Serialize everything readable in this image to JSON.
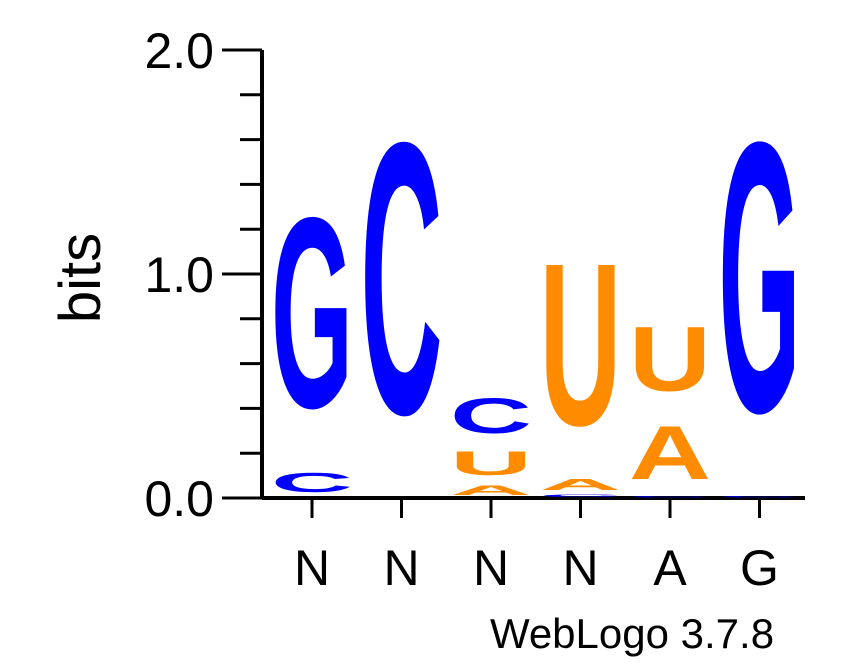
{
  "chart_data": {
    "type": "sequence-logo",
    "ylabel": "bits",
    "ylim": [
      0,
      2
    ],
    "yticks": [
      {
        "value": 0,
        "label": "0.0"
      },
      {
        "value": 1,
        "label": "1.0"
      },
      {
        "value": 2,
        "label": "2.0"
      }
    ],
    "minor_tick_step": 0.2,
    "positions": [
      {
        "label": "N",
        "stack": [
          {
            "letter": "C",
            "height": 0.14
          },
          {
            "letter": "G",
            "height": 1.36
          }
        ]
      },
      {
        "label": "N",
        "stack": [
          {
            "letter": "C",
            "height": 1.94
          }
        ]
      },
      {
        "label": "N",
        "stack": [
          {
            "letter": "A",
            "height": 0.07
          },
          {
            "letter": "U",
            "height": 0.17
          },
          {
            "letter": "C",
            "height": 0.25
          }
        ]
      },
      {
        "label": "N",
        "stack": [
          {
            "letter": "C",
            "height": 0.02
          },
          {
            "letter": "A",
            "height": 0.08
          },
          {
            "letter": "U",
            "height": 1.16
          }
        ]
      },
      {
        "label": "A",
        "stack": [
          {
            "letter": "C",
            "height": 0.01
          },
          {
            "letter": "A",
            "height": 0.38
          },
          {
            "letter": "U",
            "height": 0.46
          }
        ]
      },
      {
        "label": "G",
        "stack": [
          {
            "letter": "C",
            "height": 0.01
          },
          {
            "letter": "G",
            "height": 1.93
          }
        ]
      }
    ],
    "colors": {
      "G": "#0000ff",
      "C": "#0000ff",
      "A": "#ff8c00",
      "U": "#ff8c00"
    }
  },
  "credit": "WebLogo 3.7.8"
}
